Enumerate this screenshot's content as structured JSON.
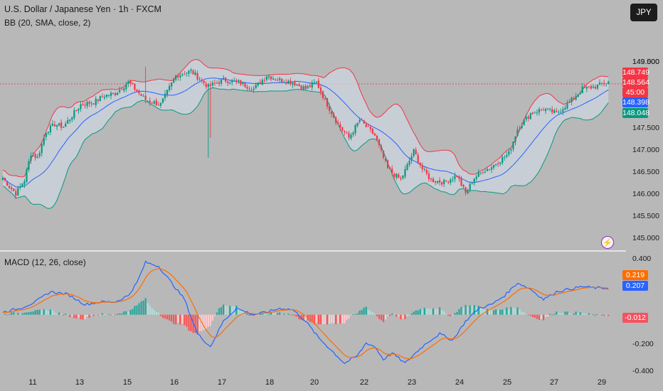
{
  "header": {
    "title": "U.S. Dollar / Japanese Yen · 1h · FXCM",
    "bb_indicator": "BB (20, SMA, close, 2)",
    "macd_indicator": "MACD (12, 26, close)",
    "currency_button": "JPY"
  },
  "price_axis": {
    "ticks": [
      "149.500",
      "149.000",
      "147.500",
      "147.000",
      "146.500",
      "146.000",
      "145.500",
      "145.000"
    ],
    "tick_values": [
      149.5,
      149.0,
      147.5,
      147.0,
      146.5,
      146.0,
      145.5,
      145.0
    ],
    "tags": {
      "bb_upper": {
        "label": "148.749",
        "color": "#f23645"
      },
      "price": {
        "label": "148.564",
        "color": "#f23645"
      },
      "countdown": {
        "label": "45:00",
        "color": "#f23645"
      },
      "bb_basis": {
        "label": "148.398",
        "color": "#2962ff"
      },
      "bb_lower": {
        "label": "148.048",
        "color": "#089981"
      }
    }
  },
  "macd_axis": {
    "ticks": [
      "0.400",
      "-0.200",
      "-0.400"
    ],
    "tick_values": [
      0.4,
      -0.2,
      -0.4
    ],
    "tags": {
      "signal": {
        "label": "0.219",
        "color": "#ff6d00"
      },
      "macd": {
        "label": "0.207",
        "color": "#2962ff"
      },
      "histogram": {
        "label": "-0.012",
        "color": "#f7525f"
      }
    }
  },
  "time_axis": {
    "labels": [
      "11",
      "13",
      "15",
      "16",
      "17",
      "18",
      "20",
      "22",
      "23",
      "24",
      "25",
      "27",
      "29"
    ]
  },
  "icons": {
    "alert": "lightning-icon"
  },
  "chart_data": {
    "type": "candlestick",
    "symbol": "USD/JPY",
    "interval": "1h",
    "price_range": [
      144.9,
      149.95
    ],
    "macd_range": [
      -0.43,
      0.46
    ],
    "colors": {
      "up": "#089981",
      "down": "#f23645",
      "bb_upper": "#f23645",
      "bb_basis": "#2962ff",
      "bb_lower": "#089981",
      "macd": "#2962ff",
      "signal": "#ff6d00"
    },
    "close_anchors": [
      [
        0,
        146.4
      ],
      [
        3,
        146.2
      ],
      [
        6,
        146.05
      ],
      [
        10,
        146.35
      ],
      [
        13,
        146.95
      ],
      [
        16,
        146.85
      ],
      [
        20,
        147.45
      ],
      [
        24,
        147.6
      ],
      [
        28,
        147.55
      ],
      [
        32,
        147.8
      ],
      [
        36,
        148.05
      ],
      [
        42,
        148.1
      ],
      [
        47,
        148.25
      ],
      [
        52,
        148.3
      ],
      [
        58,
        148.55
      ],
      [
        66,
        148.15
      ],
      [
        73,
        148.05
      ],
      [
        80,
        148.7
      ],
      [
        87,
        148.8
      ],
      [
        95,
        148.45
      ],
      [
        102,
        148.6
      ],
      [
        109,
        148.55
      ],
      [
        116,
        148.4
      ],
      [
        122,
        148.7
      ],
      [
        128,
        148.6
      ],
      [
        134,
        148.55
      ],
      [
        140,
        148.4
      ],
      [
        145,
        148.55
      ],
      [
        150,
        148.05
      ],
      [
        155,
        147.6
      ],
      [
        160,
        147.3
      ],
      [
        165,
        147.7
      ],
      [
        172,
        147.35
      ],
      [
        178,
        146.6
      ],
      [
        184,
        146.35
      ],
      [
        190,
        147.0
      ],
      [
        194,
        146.6
      ],
      [
        198,
        146.35
      ],
      [
        204,
        146.3
      ],
      [
        210,
        146.45
      ],
      [
        214,
        146.05
      ],
      [
        218,
        146.4
      ],
      [
        222,
        146.55
      ],
      [
        226,
        146.65
      ],
      [
        230,
        146.8
      ],
      [
        234,
        146.95
      ],
      [
        238,
        147.5
      ],
      [
        244,
        147.85
      ],
      [
        250,
        147.95
      ],
      [
        256,
        147.85
      ],
      [
        262,
        148.1
      ],
      [
        268,
        148.4
      ],
      [
        274,
        148.45
      ],
      [
        280,
        148.56
      ]
    ],
    "macd_anchors": [
      [
        0,
        0.02
      ],
      [
        8,
        0.05
      ],
      [
        15,
        0.1
      ],
      [
        22,
        0.18
      ],
      [
        30,
        0.16
      ],
      [
        38,
        0.08
      ],
      [
        45,
        0.1
      ],
      [
        52,
        0.1
      ],
      [
        58,
        0.15
      ],
      [
        62,
        0.25
      ],
      [
        66,
        0.41
      ],
      [
        72,
        0.38
      ],
      [
        78,
        0.25
      ],
      [
        84,
        0.12
      ],
      [
        90,
        -0.15
      ],
      [
        96,
        -0.25
      ],
      [
        102,
        -0.05
      ],
      [
        108,
        0.05
      ],
      [
        116,
        0.0
      ],
      [
        122,
        0.02
      ],
      [
        128,
        0.05
      ],
      [
        134,
        0.04
      ],
      [
        140,
        -0.05
      ],
      [
        146,
        -0.18
      ],
      [
        152,
        -0.28
      ],
      [
        158,
        -0.38
      ],
      [
        164,
        -0.32
      ],
      [
        168,
        -0.22
      ],
      [
        172,
        -0.25
      ],
      [
        176,
        -0.35
      ],
      [
        180,
        -0.3
      ],
      [
        186,
        -0.38
      ],
      [
        192,
        -0.28
      ],
      [
        196,
        -0.22
      ],
      [
        202,
        -0.15
      ],
      [
        208,
        -0.2
      ],
      [
        214,
        -0.05
      ],
      [
        220,
        0.05
      ],
      [
        226,
        0.08
      ],
      [
        232,
        0.15
      ],
      [
        238,
        0.25
      ],
      [
        244,
        0.2
      ],
      [
        250,
        0.12
      ],
      [
        256,
        0.18
      ],
      [
        262,
        0.2
      ],
      [
        268,
        0.22
      ],
      [
        274,
        0.21
      ],
      [
        280,
        0.207
      ]
    ],
    "last": {
      "price": 148.564,
      "bb_upper": 148.749,
      "bb_basis": 148.398,
      "bb_lower": 148.048,
      "macd": 0.207,
      "signal": 0.219,
      "histogram": -0.012
    }
  }
}
